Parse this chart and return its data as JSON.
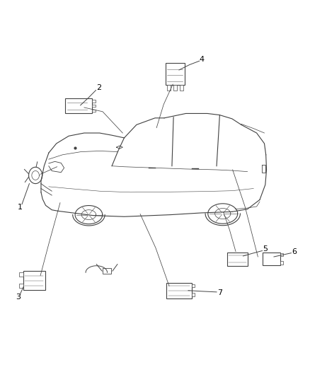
{
  "bg_color": "#ffffff",
  "line_color": "#404040",
  "label_color": "#000000",
  "fig_width": 4.38,
  "fig_height": 5.33,
  "dpi": 100,
  "car_lc": "#404040",
  "car_lw": 0.8,
  "comp_ec": "#444444",
  "comp_fc": "#ffffff",
  "detail_color": "#666666"
}
